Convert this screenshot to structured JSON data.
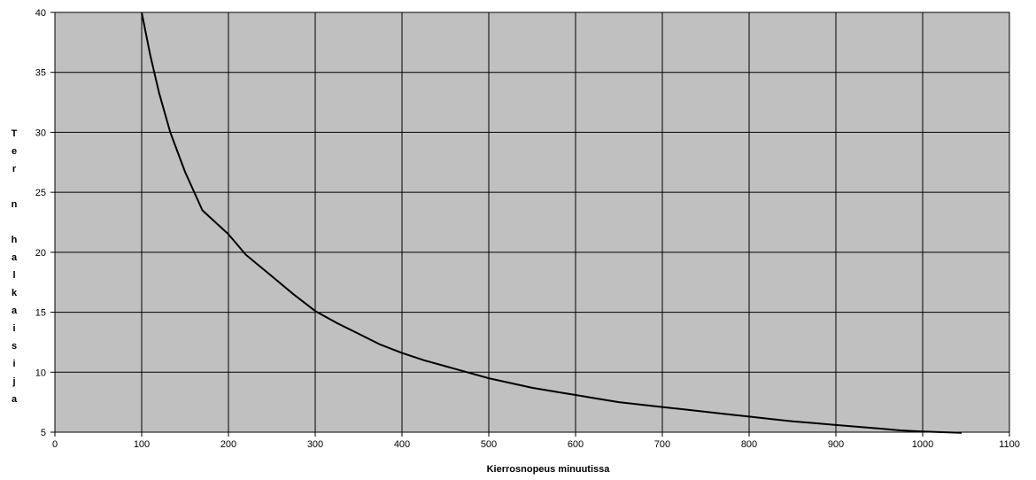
{
  "chart_data": {
    "type": "line",
    "title": "",
    "xlabel": "Kierrosnopeus minuutissa",
    "ylabel_letters": [
      "T",
      "e",
      "r",
      "",
      "n",
      "",
      "h",
      "a",
      "l",
      "k",
      "a",
      "i",
      "s",
      "i",
      "j",
      "a"
    ],
    "xlim": [
      0,
      1100
    ],
    "ylim": [
      5,
      40
    ],
    "x_ticks": [
      0,
      100,
      200,
      300,
      400,
      500,
      600,
      700,
      800,
      900,
      1000,
      1100
    ],
    "y_ticks": [
      5,
      10,
      15,
      20,
      25,
      30,
      35,
      40
    ],
    "grid": true,
    "plot_background": "#c0c0c0",
    "line_color": "#000000",
    "series": [
      {
        "x": [
          100,
          110,
          120,
          133,
          150,
          170,
          200,
          220,
          250,
          275,
          300,
          325,
          350,
          375,
          400,
          425,
          450,
          475,
          500,
          525,
          550,
          575,
          600,
          625,
          650,
          675,
          700,
          725,
          750,
          775,
          800,
          825,
          850,
          875,
          900,
          925,
          950,
          975,
          1000,
          1045
        ],
        "y": [
          40,
          36.4,
          33.3,
          30.0,
          26.7,
          23.5,
          21.5,
          19.8,
          18.0,
          16.5,
          15.1,
          14.1,
          13.2,
          12.3,
          11.6,
          11.0,
          10.5,
          10.0,
          9.5,
          9.1,
          8.7,
          8.4,
          8.1,
          7.8,
          7.5,
          7.3,
          7.1,
          6.9,
          6.7,
          6.5,
          6.3,
          6.1,
          5.9,
          5.75,
          5.6,
          5.45,
          5.3,
          5.15,
          5.05,
          4.95
        ]
      }
    ]
  }
}
